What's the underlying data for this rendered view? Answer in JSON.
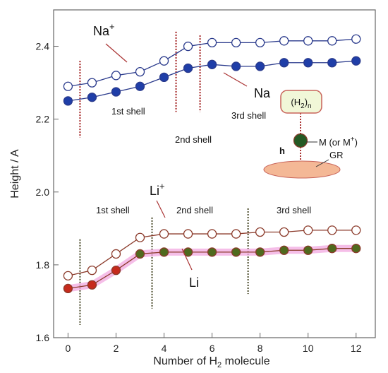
{
  "chart_data": {
    "type": "line",
    "xlabel": "Number of H",
    "xlabel_sub": "2",
    "xlabel_rest": " molecule",
    "ylabel": "Height / A",
    "xlim": [
      -0.6,
      12.8
    ],
    "ylim": [
      1.6,
      2.5
    ],
    "xticks": [
      0,
      2,
      4,
      6,
      8,
      10,
      12
    ],
    "yticks": [
      1.6,
      1.8,
      2.0,
      2.2,
      2.4
    ],
    "ytick_labels": [
      "1.6",
      "1.8",
      "2.0",
      "2.2",
      "2.4"
    ],
    "x": [
      0,
      1,
      2,
      3,
      4,
      5,
      6,
      7,
      8,
      9,
      10,
      11,
      12
    ],
    "series": [
      {
        "name": "Na+",
        "values": [
          2.29,
          2.3,
          2.32,
          2.33,
          2.36,
          2.4,
          2.41,
          2.41,
          2.41,
          2.415,
          2.415,
          2.415,
          2.42
        ],
        "color": "#2a3a8c",
        "fill": "#ffffff"
      },
      {
        "name": "Na",
        "values": [
          2.25,
          2.26,
          2.275,
          2.29,
          2.315,
          2.34,
          2.35,
          2.345,
          2.345,
          2.355,
          2.355,
          2.355,
          2.36
        ],
        "color": "#2a3a8c",
        "fill": "#1f3ea8"
      },
      {
        "name": "Li+",
        "values": [
          1.77,
          1.785,
          1.83,
          1.875,
          1.885,
          1.885,
          1.885,
          1.885,
          1.89,
          1.89,
          1.895,
          1.895,
          1.895
        ],
        "color": "#8b3a2a",
        "fill": "#ffffff"
      },
      {
        "name": "Li",
        "values": [
          1.735,
          1.745,
          1.785,
          1.83,
          1.835,
          1.835,
          1.835,
          1.835,
          1.835,
          1.84,
          1.84,
          1.845,
          1.845
        ],
        "color": "#8b3a2a",
        "fill": "#c62a1c",
        "fill_right": "#4f6a1e",
        "highlight": "#f2a8e0"
      }
    ],
    "series_labels": {
      "na_plus": {
        "base": "Na",
        "sup": "+"
      },
      "na": {
        "base": "Na"
      },
      "li_plus": {
        "base": "Li",
        "sup": "+"
      },
      "li": {
        "base": "Li"
      }
    },
    "shell_labels": {
      "na_1st": "1st shell",
      "na_2nd": "2nd shell",
      "na_3rd": "3rd shell",
      "li_1st": "1st shell",
      "li_2nd": "2nd shell",
      "li_3rd": "3rd shell"
    },
    "shell_boundaries": {
      "na": [
        0.5,
        4.5,
        5.5
      ],
      "li": [
        0.5,
        3.5,
        7.5
      ]
    },
    "inset": {
      "h2n_base": "(H",
      "h2n_sub": "2",
      "h2n_close": ")",
      "h2n_n": "n",
      "metal_label": "M (or M",
      "metal_sup": "+",
      "metal_close": ")",
      "height_label": "h",
      "surface_label": "GR",
      "box_fill": "#f1f7d8",
      "box_stroke": "#c8645a",
      "surface_fill": "#f4b896",
      "atom_fill": "#245a24"
    }
  }
}
